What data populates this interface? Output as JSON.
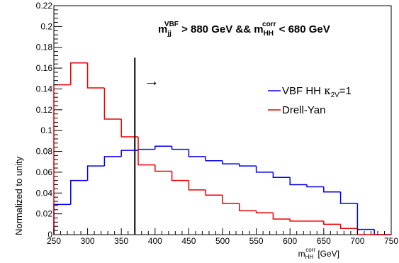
{
  "chart_data": {
    "type": "line",
    "style": "histogram",
    "x_tick_labels": [
      "250",
      "300",
      "350",
      "400",
      "450",
      "500",
      "550",
      "600",
      "650",
      "700",
      "750"
    ],
    "y_tick_labels": [
      "0",
      "0.02",
      "0.04",
      "0.06",
      "0.08",
      "0.1",
      "0.12",
      "0.14",
      "0.16",
      "0.18",
      "0.2",
      "0.22"
    ],
    "xlim": [
      250,
      750
    ],
    "ylim": [
      0,
      0.22
    ],
    "xlabel": {
      "main": "m",
      "sub": "HH",
      "sup": "corr",
      "unit": " [GeV]"
    },
    "ylabel": "Normalized to unity",
    "bin_edges": [
      250,
      275,
      300,
      325,
      350,
      375,
      400,
      425,
      450,
      475,
      500,
      525,
      550,
      575,
      600,
      625,
      650,
      675,
      700,
      725,
      750
    ],
    "series": [
      {
        "name": "VBF HH κ2V=1",
        "legend": {
          "prefix": "VBF HH ",
          "symbol": "κ",
          "sub": "2V",
          "suffix": "=1"
        },
        "color": "#0000ee",
        "values": [
          0.029,
          0.052,
          0.066,
          0.075,
          0.081,
          0.082,
          0.085,
          0.082,
          0.075,
          0.071,
          0.068,
          0.066,
          0.06,
          0.055,
          0.048,
          0.046,
          0.041,
          0.03,
          0.005,
          0.0,
          0.0
        ]
      },
      {
        "name": "Drell-Yan",
        "legend": {
          "prefix": "Drell-Yan",
          "symbol": "",
          "sub": "",
          "suffix": ""
        },
        "color": "#ee0000",
        "values": [
          0.144,
          0.165,
          0.141,
          0.111,
          0.094,
          0.067,
          0.061,
          0.052,
          0.043,
          0.038,
          0.03,
          0.023,
          0.021,
          0.015,
          0.013,
          0.013,
          0.01,
          0.006,
          0.0,
          0.0,
          0.0
        ]
      }
    ],
    "cut_line_x": 370,
    "grid": false,
    "legend_position": "right",
    "annotation": {
      "part1_main": "m",
      "part1_sub": "jj",
      "part1_sup": "VBF",
      "part1_text": " > 880 GeV && ",
      "part2_main": "m",
      "part2_sub": "HH",
      "part2_sup": "corr",
      "part2_text": " < 680 GeV"
    },
    "arrow": "→"
  }
}
